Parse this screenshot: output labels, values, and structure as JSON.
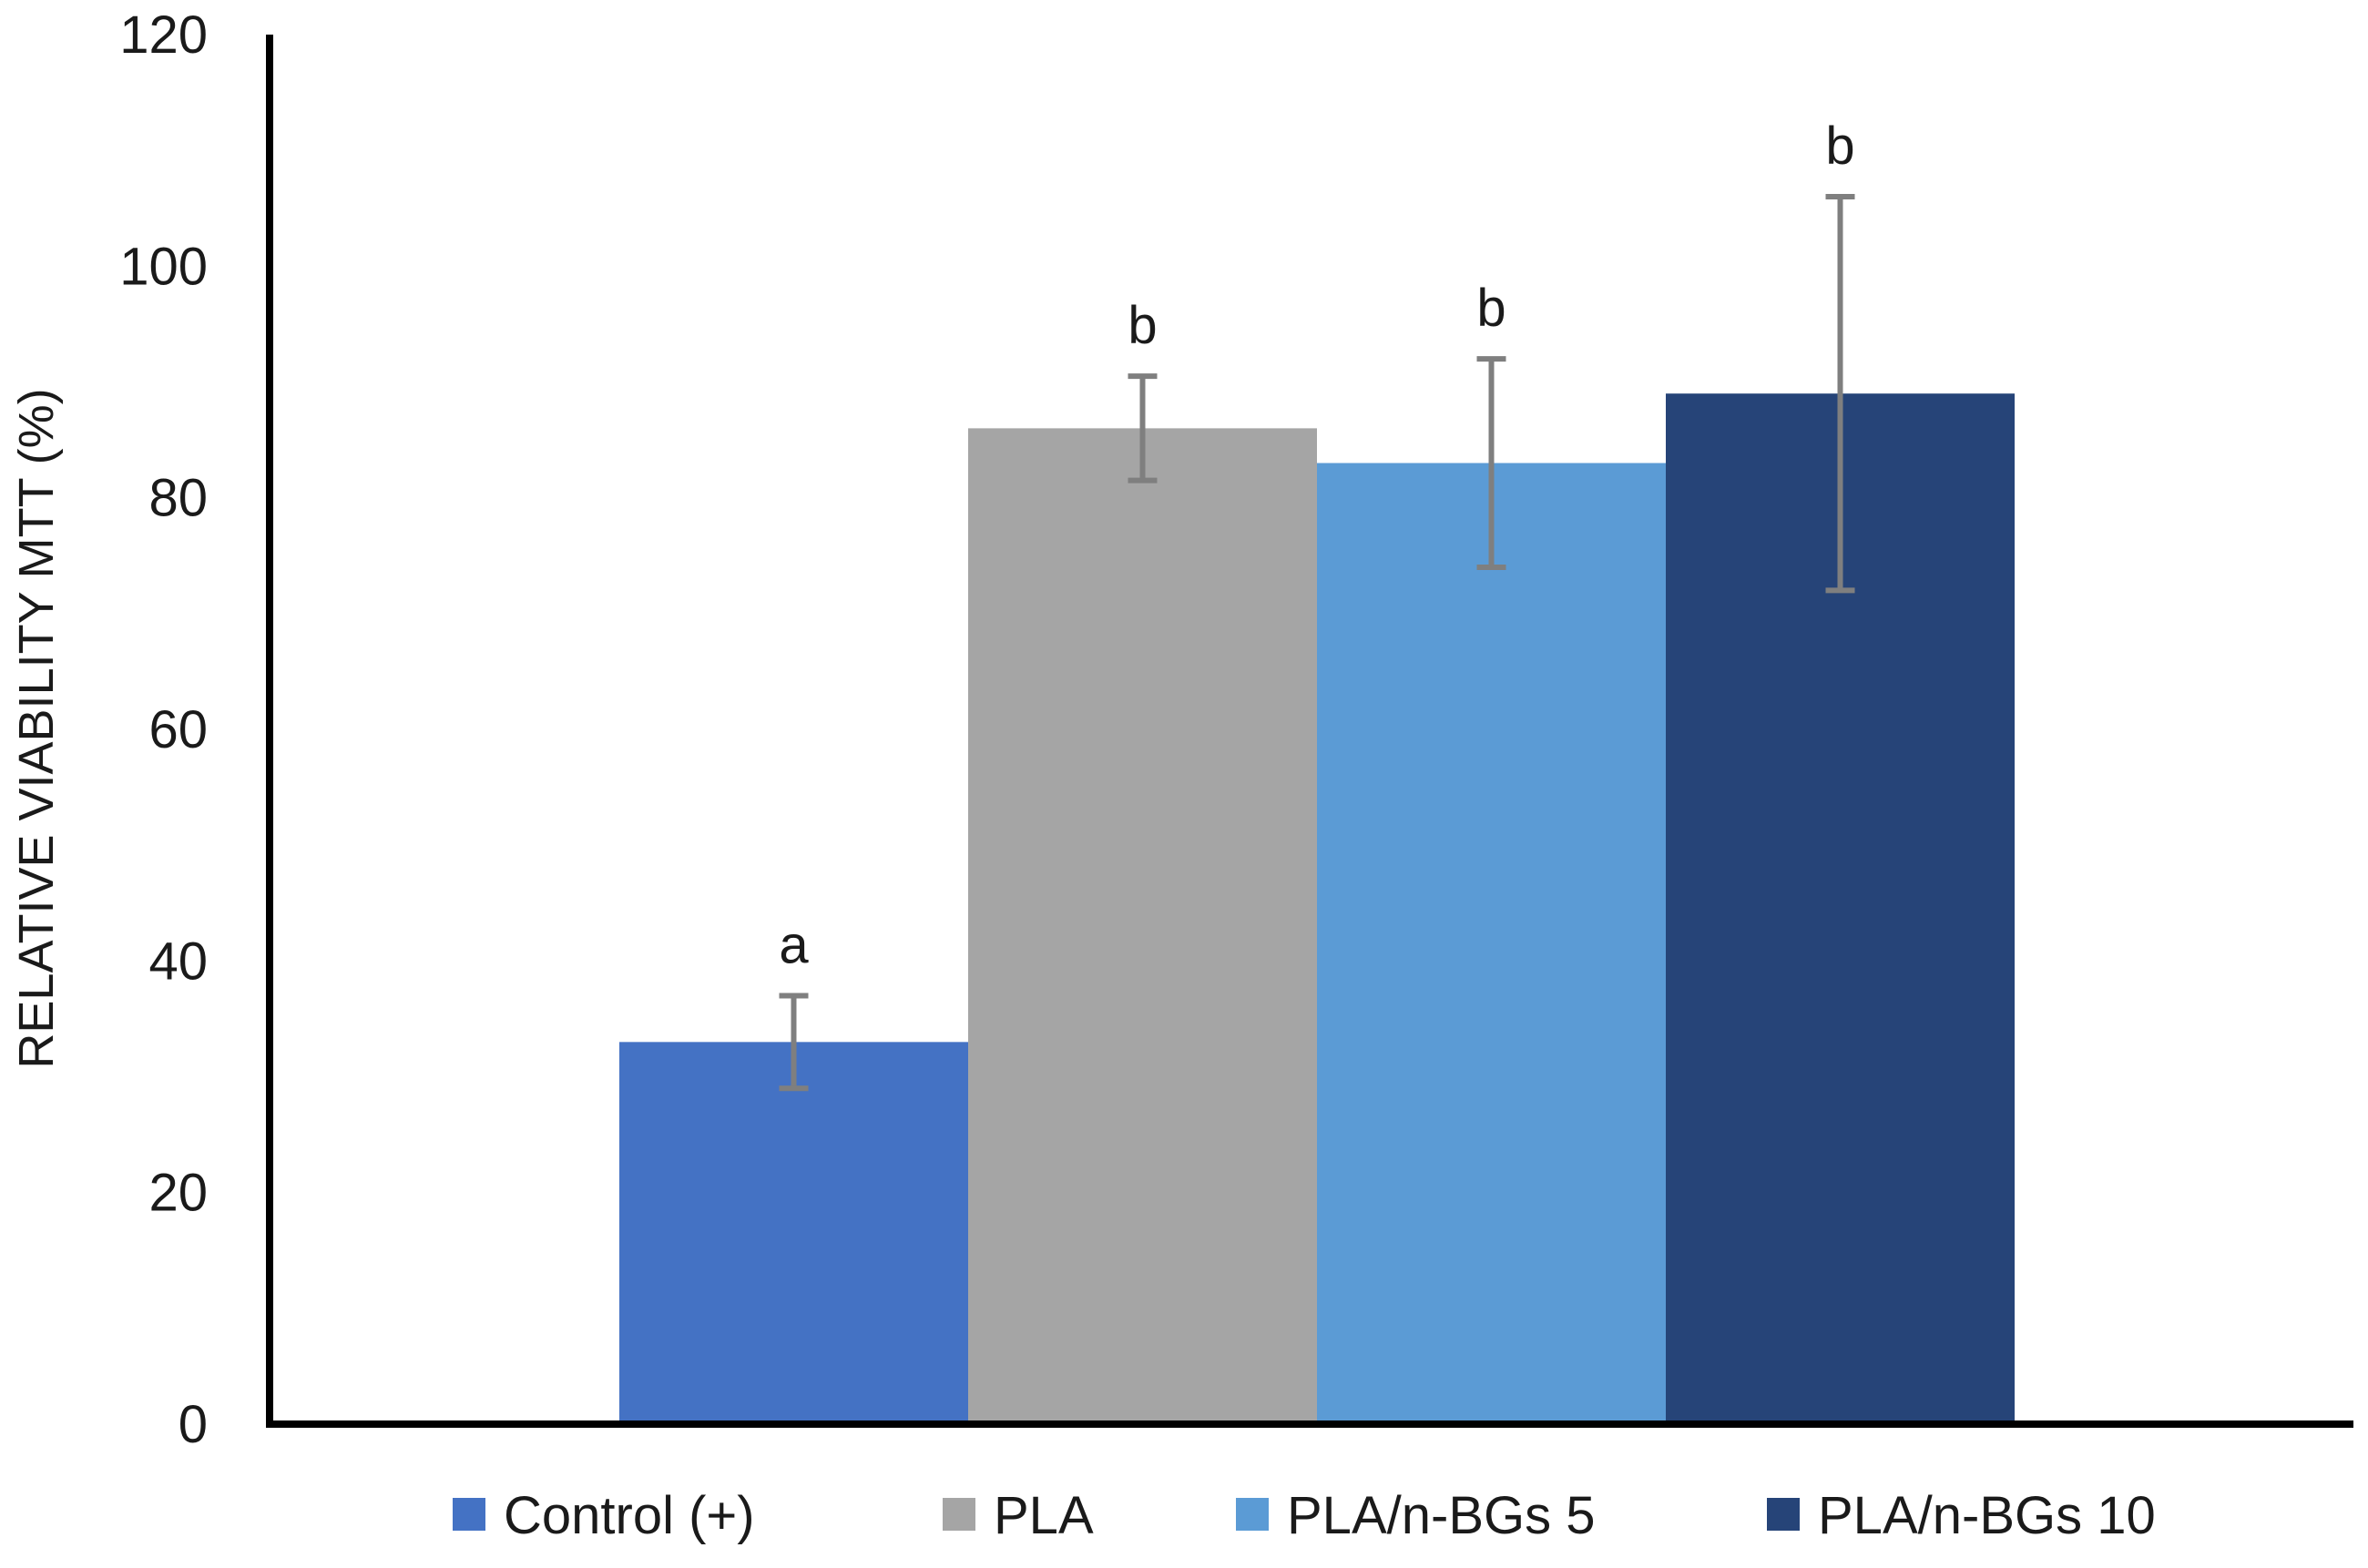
{
  "chart_data": {
    "type": "bar",
    "title": "",
    "xlabel": "",
    "ylabel": "RELATIVE VIABILITY MTT (%)",
    "ylim": [
      0,
      120
    ],
    "yticks": [
      "0",
      "20",
      "40",
      "60",
      "80",
      "100",
      "120"
    ],
    "grid": false,
    "legend_position": "bottom",
    "series": [
      {
        "name": "Control (+)",
        "value": 33,
        "error": 4,
        "significance": "a",
        "color": "#4472C4"
      },
      {
        "name": "PLA",
        "value": 86,
        "error": 4.5,
        "significance": "b",
        "color": "#A5A5A5"
      },
      {
        "name": "PLA/n-BGs 5",
        "value": 83,
        "error": 9,
        "significance": "b",
        "color": "#5B9BD5"
      },
      {
        "name": "PLA/n-BGs 10",
        "value": 89,
        "error": 17,
        "significance": "b",
        "color": "#264478"
      }
    ],
    "errorbar_color": "#7F7F7F",
    "axis_color": "#000000"
  }
}
